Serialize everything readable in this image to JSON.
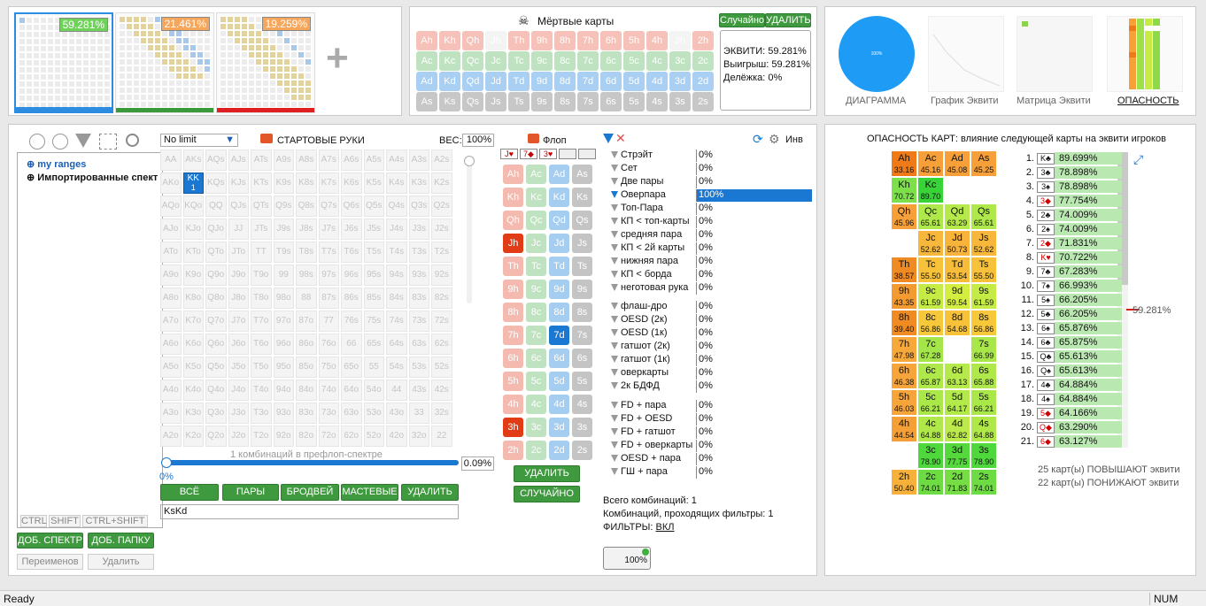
{
  "top": {
    "ranges": [
      {
        "pct": "59.281%",
        "pct_color": "#6fd35a",
        "bar": "#2c8de0"
      },
      {
        "pct": "21.461%",
        "pct_color": "#f5a65b",
        "bar": "#3a9a3a"
      },
      {
        "pct": "19.259%",
        "pct_color": "#f5a65b",
        "bar": "#e02020"
      }
    ],
    "add_label": "+",
    "dead_title": "Мёртвые карты",
    "random": "Случайно",
    "delete": "УДАЛИТЬ",
    "equity": "ЭКВИТИ: 59.281%",
    "win": "Выигрыш: 59.281%",
    "tie": "Делёжка: 0%",
    "card_rows": [
      [
        "Ah",
        "Kh",
        "Qh",
        "Jh",
        "Th",
        "9h",
        "8h",
        "7h",
        "6h",
        "5h",
        "4h",
        "3h",
        "2h"
      ],
      [
        "Ac",
        "Kc",
        "Qc",
        "Jc",
        "Tc",
        "9c",
        "8c",
        "7c",
        "6c",
        "5c",
        "4c",
        "3c",
        "2c"
      ],
      [
        "Ad",
        "Kd",
        "Qd",
        "Jd",
        "Td",
        "9d",
        "8d",
        "7d",
        "6d",
        "5d",
        "4d",
        "3d",
        "2d"
      ],
      [
        "As",
        "Ks",
        "Qs",
        "Js",
        "Ts",
        "9s",
        "8s",
        "7s",
        "6s",
        "5s",
        "4s",
        "3s",
        "2s"
      ]
    ],
    "views": [
      "ДИАГРАММА",
      "График Эквити",
      "Матрица Эквити",
      "ОПАСНОСТЬ"
    ],
    "pie_label": "100%"
  },
  "left": {
    "tree": [
      "my ranges",
      "Импортированные спект"
    ],
    "mods": [
      "CTRL",
      "SHIFT",
      "CTRL+SHIFT"
    ],
    "add_range": "ДОБ. СПЕКТР",
    "add_folder": "ДОБ. ПАПКУ",
    "rename": "Переименов",
    "delete": "Удалить"
  },
  "mid": {
    "limit": "No limit",
    "start_hands": "СТАРТОВЫЕ РУКИ",
    "weight_label": "ВЕС:",
    "weight_value": "100%",
    "flop_label": "Флоп",
    "hands": [
      [
        "AA",
        "AKs",
        "AQs",
        "AJs",
        "ATs",
        "A9s",
        "A8s",
        "A7s",
        "A6s",
        "A5s",
        "A4s",
        "A3s",
        "A2s"
      ],
      [
        "AKo",
        "KK",
        "KQs",
        "KJs",
        "KTs",
        "K9s",
        "K8s",
        "K7s",
        "K6s",
        "K5s",
        "K4s",
        "K3s",
        "K2s"
      ],
      [
        "AQo",
        "KQo",
        "QQ",
        "QJs",
        "QTs",
        "Q9s",
        "Q8s",
        "Q7s",
        "Q6s",
        "Q5s",
        "Q4s",
        "Q3s",
        "Q2s"
      ],
      [
        "AJo",
        "KJo",
        "QJo",
        "JJ",
        "JTs",
        "J9s",
        "J8s",
        "J7s",
        "J6s",
        "J5s",
        "J4s",
        "J3s",
        "J2s"
      ],
      [
        "ATo",
        "KTo",
        "QTo",
        "JTo",
        "TT",
        "T9s",
        "T8s",
        "T7s",
        "T6s",
        "T5s",
        "T4s",
        "T3s",
        "T2s"
      ],
      [
        "A9o",
        "K9o",
        "Q9o",
        "J9o",
        "T9o",
        "99",
        "98s",
        "97s",
        "96s",
        "95s",
        "94s",
        "93s",
        "92s"
      ],
      [
        "A8o",
        "K8o",
        "Q8o",
        "J8o",
        "T8o",
        "98o",
        "88",
        "87s",
        "86s",
        "85s",
        "84s",
        "83s",
        "82s"
      ],
      [
        "A7o",
        "K7o",
        "Q7o",
        "J7o",
        "T7o",
        "97o",
        "87o",
        "77",
        "76s",
        "75s",
        "74s",
        "73s",
        "72s"
      ],
      [
        "A6o",
        "K6o",
        "Q6o",
        "J6o",
        "T6o",
        "96o",
        "86o",
        "76o",
        "66",
        "65s",
        "64s",
        "63s",
        "62s"
      ],
      [
        "A5o",
        "K5o",
        "Q5o",
        "J5o",
        "T5o",
        "95o",
        "85o",
        "75o",
        "65o",
        "55",
        "54s",
        "53s",
        "52s"
      ],
      [
        "A4o",
        "K4o",
        "Q4o",
        "J4o",
        "T4o",
        "94o",
        "84o",
        "74o",
        "64o",
        "54o",
        "44",
        "43s",
        "42s"
      ],
      [
        "A3o",
        "K3o",
        "Q3o",
        "J3o",
        "T3o",
        "93o",
        "83o",
        "73o",
        "63o",
        "53o",
        "43o",
        "33",
        "32s"
      ],
      [
        "A2o",
        "K2o",
        "Q2o",
        "J2o",
        "T2o",
        "92o",
        "82o",
        "72o",
        "62o",
        "52o",
        "42o",
        "32o",
        "22"
      ]
    ],
    "kk_count": "1",
    "combo_note": "1 комбинаций в префлоп-спектре",
    "slider_left": "0%",
    "slider_right": "0.09%",
    "buttons": [
      "ВСЁ",
      "ПАРЫ",
      "БРОДВЕЙ",
      "МАСТЕВЫЕ",
      "УДАЛИТЬ"
    ],
    "hand_text": "KsKd",
    "board": [
      "J♥",
      "7◆",
      "3♥"
    ],
    "flop_rows": [
      [
        "Ah",
        "Ac",
        "Ad",
        "As"
      ],
      [
        "Kh",
        "Kc",
        "Kd",
        "Ks"
      ],
      [
        "Qh",
        "Qc",
        "Qd",
        "Qs"
      ],
      [
        "Jh",
        "Jc",
        "Jd",
        "Js"
      ],
      [
        "Th",
        "Tc",
        "Td",
        "Ts"
      ],
      [
        "9h",
        "9c",
        "9d",
        "9s"
      ],
      [
        "8h",
        "8c",
        "8d",
        "8s"
      ],
      [
        "7h",
        "7c",
        "7d",
        "7s"
      ],
      [
        "6h",
        "6c",
        "6d",
        "6s"
      ],
      [
        "5h",
        "5c",
        "5d",
        "5s"
      ],
      [
        "4h",
        "4c",
        "4d",
        "4s"
      ],
      [
        "3h",
        "3c",
        "3d",
        "3s"
      ],
      [
        "2h",
        "2c",
        "2d",
        "2s"
      ]
    ],
    "flop_delete": "УДАЛИТЬ",
    "flop_random": "СЛУЧАЙНО"
  },
  "filters": {
    "inv": "Инв",
    "made": [
      {
        "name": "Стрэйт",
        "pct": "0%"
      },
      {
        "name": "Сет",
        "pct": "0%"
      },
      {
        "name": "Две пары",
        "pct": "0%"
      },
      {
        "name": "Оверпара",
        "pct": "100%"
      },
      {
        "name": "Топ-Пара",
        "pct": "0%"
      },
      {
        "name": "КП < топ-карты",
        "pct": "0%"
      },
      {
        "name": "средняя пара",
        "pct": "0%"
      },
      {
        "name": "КП < 2й карты",
        "pct": "0%"
      },
      {
        "name": "нижняя пара",
        "pct": "0%"
      },
      {
        "name": "КП < борда",
        "pct": "0%"
      },
      {
        "name": "неготовая рука",
        "pct": "0%"
      }
    ],
    "draws": [
      {
        "name": "флаш-дро",
        "pct": "0%"
      },
      {
        "name": "OESD (2к)",
        "pct": "0%"
      },
      {
        "name": "OESD (1к)",
        "pct": "0%"
      },
      {
        "name": "гатшот (2к)",
        "pct": "0%"
      },
      {
        "name": "гатшот (1к)",
        "pct": "0%"
      },
      {
        "name": "оверкарты",
        "pct": "0%"
      },
      {
        "name": "2к БДФД",
        "pct": "0%"
      }
    ],
    "combos": [
      {
        "name": "FD + пара",
        "pct": "0%"
      },
      {
        "name": "FD + OESD",
        "pct": "0%"
      },
      {
        "name": "FD + гатшот",
        "pct": "0%"
      },
      {
        "name": "FD + оверкарты",
        "pct": "0%"
      },
      {
        "name": "OESD + пара",
        "pct": "0%"
      },
      {
        "name": "ГШ + пара",
        "pct": "0%"
      }
    ],
    "total": "Всего комбинаций: 1",
    "passing": "Комбинаций, проходящих фильтры: 1",
    "filters_label": "ФИЛЬТРЫ:",
    "filters_on": "ВКЛ",
    "badge": "100%"
  },
  "danger": {
    "title": "ОПАСНОСТЬ КАРТ: влияние следующей карты на эквити игроков",
    "cells": [
      [
        {
          "c": "Ah",
          "v": "33.16",
          "col": "#f07a18"
        },
        {
          "c": "Ac",
          "v": "45.16",
          "col": "#f7a03a"
        },
        {
          "c": "Ad",
          "v": "45.08",
          "col": "#f7a03a"
        },
        {
          "c": "As",
          "v": "45.25",
          "col": "#f7a03a"
        }
      ],
      [
        {
          "c": "Kh",
          "v": "70.72",
          "col": "#7de04a"
        },
        {
          "c": "Kc",
          "v": "89.70",
          "col": "#37d337"
        },
        {
          "c": "",
          "v": "",
          "col": ""
        },
        {
          "c": "",
          "v": "",
          "col": ""
        }
      ],
      [
        {
          "c": "Qh",
          "v": "45.96",
          "col": "#f7a03a"
        },
        {
          "c": "Qc",
          "v": "65.61",
          "col": "#aee84a"
        },
        {
          "c": "Qd",
          "v": "63.29",
          "col": "#b6ea4a"
        },
        {
          "c": "Qs",
          "v": "65.61",
          "col": "#aee84a"
        }
      ],
      [
        {
          "c": "",
          "v": "",
          "col": ""
        },
        {
          "c": "Jc",
          "v": "52.62",
          "col": "#f7b73a"
        },
        {
          "c": "Jd",
          "v": "50.73",
          "col": "#f7b33a"
        },
        {
          "c": "Js",
          "v": "52.62",
          "col": "#f7b73a"
        }
      ],
      [
        {
          "c": "Th",
          "v": "38.57",
          "col": "#f08a22"
        },
        {
          "c": "Tc",
          "v": "55.50",
          "col": "#f7c23a"
        },
        {
          "c": "Td",
          "v": "53.54",
          "col": "#f7bd3a"
        },
        {
          "c": "Ts",
          "v": "55.50",
          "col": "#f7c23a"
        }
      ],
      [
        {
          "c": "9h",
          "v": "43.35",
          "col": "#f39a30"
        },
        {
          "c": "9c",
          "v": "61.59",
          "col": "#c5ec44"
        },
        {
          "c": "9d",
          "v": "59.54",
          "col": "#d4ee40"
        },
        {
          "c": "9s",
          "v": "61.59",
          "col": "#c5ec44"
        }
      ],
      [
        {
          "c": "8h",
          "v": "39.40",
          "col": "#f08a22"
        },
        {
          "c": "8c",
          "v": "56.86",
          "col": "#f7c83a"
        },
        {
          "c": "8d",
          "v": "54.68",
          "col": "#f7c23a"
        },
        {
          "c": "8s",
          "v": "56.86",
          "col": "#f7c83a"
        }
      ],
      [
        {
          "c": "7h",
          "v": "47.98",
          "col": "#f7a83a"
        },
        {
          "c": "7c",
          "v": "67.28",
          "col": "#a4e64a"
        },
        {
          "c": "",
          "v": "",
          "col": ""
        },
        {
          "c": "7s",
          "v": "66.99",
          "col": "#a8e64a"
        }
      ],
      [
        {
          "c": "6h",
          "v": "46.38",
          "col": "#f7a43a"
        },
        {
          "c": "6c",
          "v": "65.87",
          "col": "#aee84a"
        },
        {
          "c": "6d",
          "v": "63.13",
          "col": "#b6ea4a"
        },
        {
          "c": "6s",
          "v": "65.88",
          "col": "#aee84a"
        }
      ],
      [
        {
          "c": "5h",
          "v": "46.03",
          "col": "#f7a43a"
        },
        {
          "c": "5c",
          "v": "66.21",
          "col": "#aae84a"
        },
        {
          "c": "5d",
          "v": "64.17",
          "col": "#b2ea4a"
        },
        {
          "c": "5s",
          "v": "66.21",
          "col": "#aae84a"
        }
      ],
      [
        {
          "c": "4h",
          "v": "44.54",
          "col": "#f5a036"
        },
        {
          "c": "4c",
          "v": "64.88",
          "col": "#b0e84a"
        },
        {
          "c": "4d",
          "v": "62.82",
          "col": "#bcea4a"
        },
        {
          "c": "4s",
          "v": "64.88",
          "col": "#b0e84a"
        }
      ],
      [
        {
          "c": "",
          "v": "",
          "col": ""
        },
        {
          "c": "3c",
          "v": "78.90",
          "col": "#4fd83c"
        },
        {
          "c": "3d",
          "v": "77.75",
          "col": "#54d83c"
        },
        {
          "c": "3s",
          "v": "78.90",
          "col": "#4fd83c"
        }
      ],
      [
        {
          "c": "2h",
          "v": "50.40",
          "col": "#f7b03a"
        },
        {
          "c": "2c",
          "v": "74.01",
          "col": "#6cdc42"
        },
        {
          "c": "2d",
          "v": "71.83",
          "col": "#76de44"
        },
        {
          "c": "2s",
          "v": "74.01",
          "col": "#6cdc42"
        }
      ]
    ],
    "ranking": [
      {
        "n": "1.",
        "card": "K♣",
        "v": "89.699%"
      },
      {
        "n": "2.",
        "card": "3♣",
        "v": "78.898%"
      },
      {
        "n": "3.",
        "card": "3♠",
        "v": "78.898%"
      },
      {
        "n": "4.",
        "card": "3◆",
        "v": "77.754%"
      },
      {
        "n": "5.",
        "card": "2♣",
        "v": "74.009%"
      },
      {
        "n": "6.",
        "card": "2♠",
        "v": "74.009%"
      },
      {
        "n": "7.",
        "card": "2◆",
        "v": "71.831%"
      },
      {
        "n": "8.",
        "card": "K♥",
        "v": "70.722%"
      },
      {
        "n": "9.",
        "card": "7♣",
        "v": "67.283%"
      },
      {
        "n": "10.",
        "card": "7♠",
        "v": "66.993%"
      },
      {
        "n": "11.",
        "card": "5♠",
        "v": "66.205%"
      },
      {
        "n": "12.",
        "card": "5♣",
        "v": "66.205%"
      },
      {
        "n": "13.",
        "card": "6♠",
        "v": "65.876%"
      },
      {
        "n": "14.",
        "card": "6♣",
        "v": "65.875%"
      },
      {
        "n": "15.",
        "card": "Q♣",
        "v": "65.613%"
      },
      {
        "n": "16.",
        "card": "Q♠",
        "v": "65.613%"
      },
      {
        "n": "17.",
        "card": "4♣",
        "v": "64.884%"
      },
      {
        "n": "18.",
        "card": "4♠",
        "v": "64.884%"
      },
      {
        "n": "19.",
        "card": "5◆",
        "v": "64.166%"
      },
      {
        "n": "20.",
        "card": "Q◆",
        "v": "63.290%"
      },
      {
        "n": "21.",
        "card": "6◆",
        "v": "63.127%"
      }
    ],
    "marker": "59.281%",
    "up": "25 карт(ы) ПОВЫШАЮТ эквити",
    "down": "22 карт(ы) ПОНИЖАЮТ эквити"
  },
  "status": {
    "ready": "Ready",
    "num": "NUM"
  }
}
